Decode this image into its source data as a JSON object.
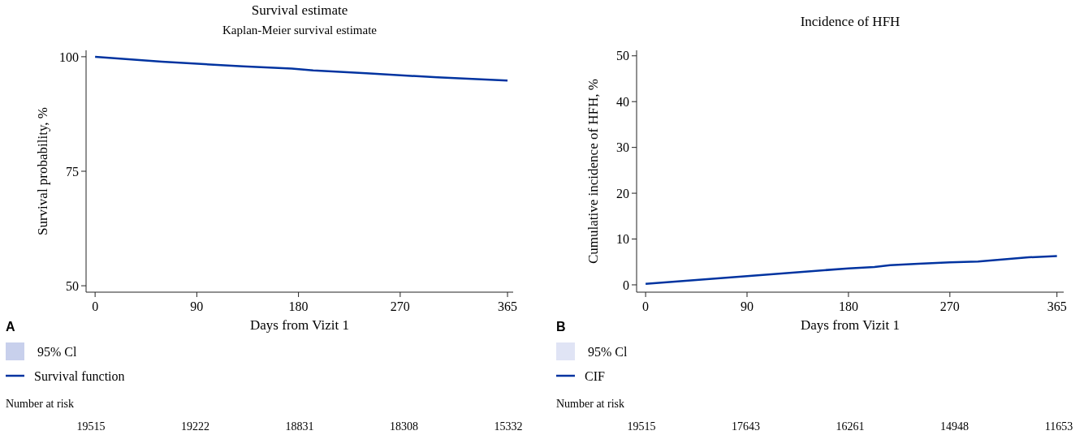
{
  "chart_data": [
    {
      "type": "line",
      "title": "Survival estimate",
      "subtitle": "Kaplan-Meier survival estimate",
      "xlabel": "Days from Vizit 1",
      "ylabel": "Survival probability, %",
      "xlim": [
        -8,
        370
      ],
      "xticks": [
        0,
        90,
        180,
        270,
        365
      ],
      "ylim": [
        48.6,
        101.4
      ],
      "yticks": [
        50,
        75,
        100
      ],
      "grid": false,
      "legend": "bottom",
      "series": [
        {
          "name": "95% Cl",
          "type": "area",
          "color": "#c8d0ec"
        },
        {
          "name": "Survival function",
          "color": "#0033a0",
          "x": [
            0,
            59,
            131,
            174,
            193,
            240,
            303,
            330,
            365
          ],
          "values": [
            100,
            98.9,
            97.9,
            97.4,
            97.0,
            96.4,
            95.5,
            95.2,
            94.8
          ]
        }
      ],
      "annotations": [
        "A",
        "Number at risk",
        "19515",
        "19222",
        "18831",
        "18308",
        "15332"
      ]
    },
    {
      "type": "line",
      "title": "Incidence of HFH",
      "xlabel": "Days from Vizit 1",
      "ylabel": "Cumulative incidence of HFH, %",
      "xlim": [
        -8,
        371
      ],
      "xticks": [
        0,
        90,
        180,
        270,
        365
      ],
      "ylim": [
        -1.6,
        51.2
      ],
      "yticks": [
        0,
        10,
        20,
        30,
        40,
        50
      ],
      "grid": false,
      "legend": "bottom",
      "series": [
        {
          "name": "95% Cl",
          "type": "area",
          "color": "#e0e4f5"
        },
        {
          "name": "CIF",
          "color": "#0033a0",
          "x": [
            0,
            90,
            180,
            203,
            217,
            242,
            270,
            295,
            340,
            365
          ],
          "values": [
            0.2,
            1.9,
            3.6,
            3.9,
            4.3,
            4.6,
            4.9,
            5.1,
            6.0,
            6.3
          ]
        }
      ],
      "annotations": [
        "B",
        "Number at risk",
        "19515",
        "17643",
        "16261",
        "14948",
        "11653"
      ]
    }
  ]
}
